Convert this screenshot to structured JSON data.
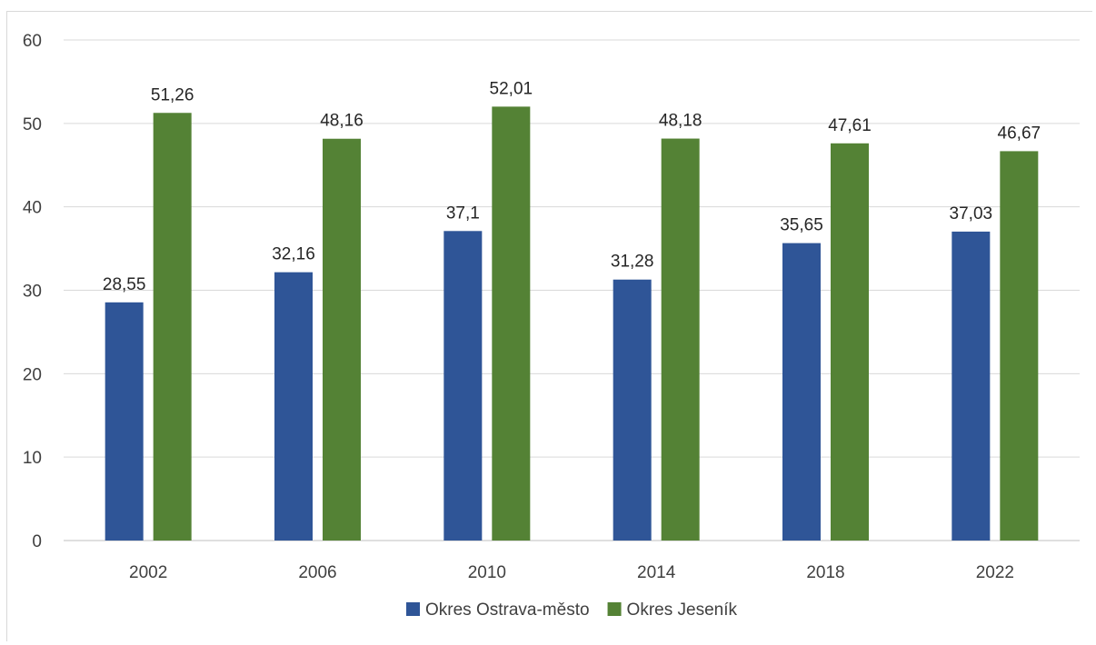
{
  "chart_data": {
    "type": "bar",
    "categories": [
      "2002",
      "2006",
      "2010",
      "2014",
      "2018",
      "2022"
    ],
    "series": [
      {
        "name": "Okres Ostrava-město",
        "color": "#2f5597",
        "values": [
          28.55,
          32.16,
          37.1,
          31.28,
          35.65,
          37.03
        ],
        "labels": [
          "28,55",
          "32,16",
          "37,1",
          "31,28",
          "35,65",
          "37,03"
        ]
      },
      {
        "name": "Okres Jeseník",
        "color": "#548235",
        "values": [
          51.26,
          48.16,
          52.01,
          48.18,
          47.61,
          46.67
        ],
        "labels": [
          "51,26",
          "48,16",
          "52,01",
          "48,18",
          "47,61",
          "46,67"
        ]
      }
    ],
    "ylim": [
      0,
      60
    ],
    "yticks": [
      0,
      10,
      20,
      30,
      40,
      50,
      60
    ],
    "grid": true,
    "legend_position": "bottom",
    "title": "",
    "xlabel": "",
    "ylabel": ""
  }
}
